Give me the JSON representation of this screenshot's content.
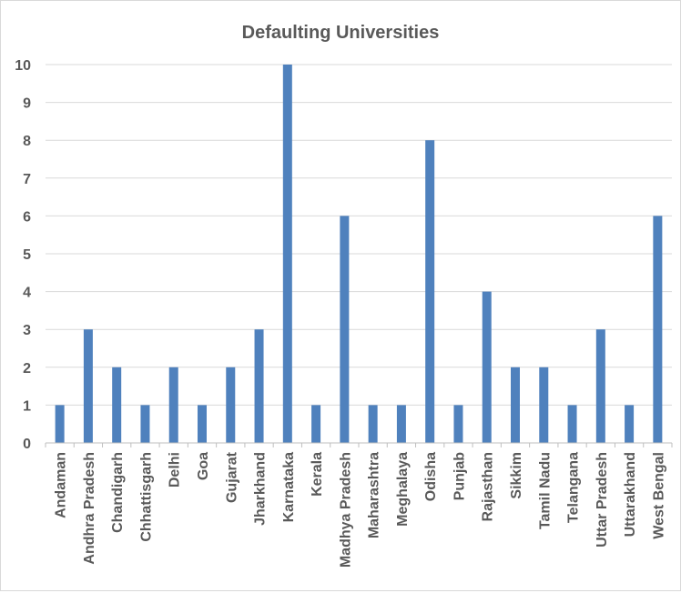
{
  "chart_data": {
    "type": "bar",
    "title": "Defaulting Universities",
    "xlabel": "",
    "ylabel": "",
    "ylim": [
      0,
      10
    ],
    "yticks": [
      "0",
      "1",
      "2",
      "3",
      "4",
      "5",
      "6",
      "7",
      "8",
      "9",
      "10"
    ],
    "grid": true,
    "legend": "none",
    "categories": [
      "Andaman",
      "Andhra Pradesh",
      "Chandigarh",
      "Chhattisgarh",
      "Delhi",
      "Goa",
      "Gujarat",
      "Jharkhand",
      "Karnataka",
      "Kerala",
      "Madhya Pradesh",
      "Maharashtra",
      "Meghalaya",
      "Odisha",
      "Punjab",
      "Rajasthan",
      "Sikkim",
      "Tamil Nadu",
      "Telangana",
      "Uttar Pradesh",
      "Uttarakhand",
      "West Bengal"
    ],
    "values": [
      1,
      3,
      2,
      1,
      2,
      1,
      2,
      3,
      10,
      1,
      6,
      1,
      1,
      8,
      1,
      4,
      2,
      2,
      1,
      3,
      1,
      6
    ],
    "bar_color": "#4f81bd"
  }
}
